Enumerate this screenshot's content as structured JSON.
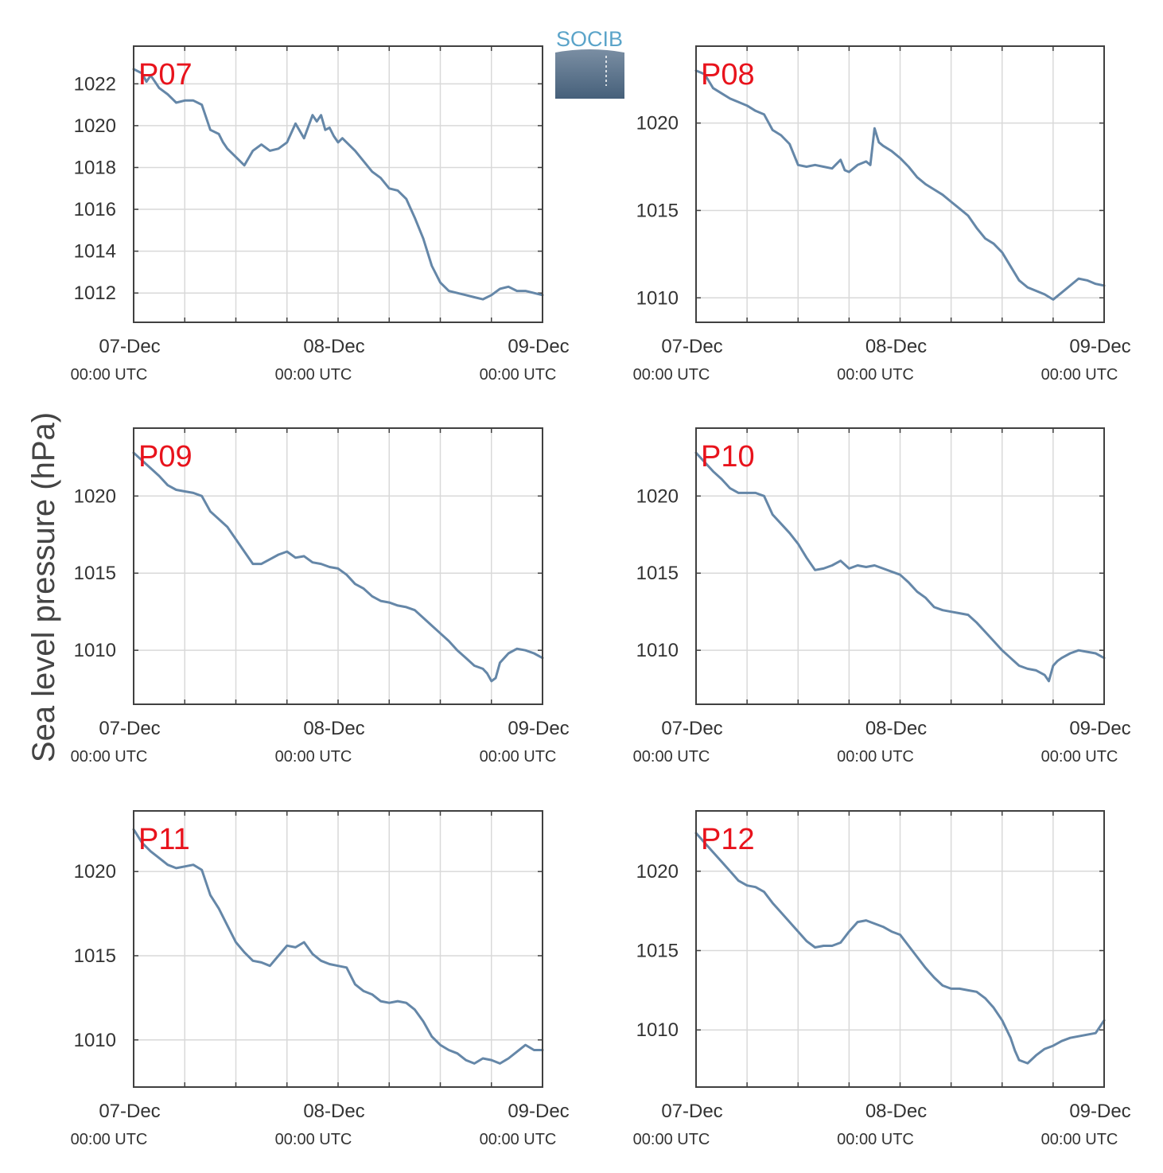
{
  "figure": {
    "ylabel": "Sea level pressure (hPa)",
    "logo_text": "SOCIB",
    "colors": {
      "line": "#6587a8",
      "title": "#e8131c",
      "grid": "#d9d9d9",
      "axis": "#404040",
      "logo_top": "#5ba4c9",
      "logo_bottom": "#46607a"
    }
  },
  "chart_data": [
    {
      "type": "line",
      "title": "P07",
      "xlim": [
        0,
        48
      ],
      "ylim": [
        1010.6,
        1023.8
      ],
      "yticks": [
        1012,
        1014,
        1016,
        1018,
        1020,
        1022
      ],
      "xticks": [
        {
          "x": 0,
          "date": "07-Dec",
          "time": "00:00 UTC"
        },
        {
          "x": 24,
          "date": "08-Dec",
          "time": "00:00 UTC"
        },
        {
          "x": 48,
          "date": "09-Dec",
          "time": "00:00 UTC"
        }
      ],
      "series": [
        {
          "x": [
            0,
            1,
            1.5,
            2,
            2.5,
            3,
            4,
            5,
            6,
            7,
            8,
            9,
            10,
            10.5,
            11,
            12,
            13,
            14,
            15,
            16,
            17,
            18,
            19,
            20,
            21,
            21.5,
            22,
            22.5,
            23,
            23.5,
            24,
            24.5,
            25,
            26,
            27,
            28,
            29,
            30,
            31,
            32,
            33,
            34,
            35,
            36,
            37,
            38,
            39,
            40,
            41,
            42,
            43,
            44,
            45,
            46,
            47,
            48
          ],
          "values": [
            1022.7,
            1022.5,
            1022.1,
            1022.4,
            1022.1,
            1021.8,
            1021.5,
            1021.1,
            1021.2,
            1021.2,
            1021.0,
            1019.8,
            1019.6,
            1019.2,
            1018.9,
            1018.5,
            1018.1,
            1018.8,
            1019.1,
            1018.8,
            1018.9,
            1019.2,
            1020.1,
            1019.4,
            1020.5,
            1020.2,
            1020.5,
            1019.8,
            1019.9,
            1019.5,
            1019.2,
            1019.4,
            1019.2,
            1018.8,
            1018.3,
            1017.8,
            1017.5,
            1017.0,
            1016.9,
            1016.5,
            1015.6,
            1014.6,
            1013.3,
            1012.5,
            1012.1,
            1012.0,
            1011.9,
            1011.8,
            1011.7,
            1011.9,
            1012.2,
            1012.3,
            1012.1,
            1012.1,
            1012.0,
            1011.9
          ]
        }
      ]
    },
    {
      "type": "line",
      "title": "P08",
      "xlim": [
        0,
        48
      ],
      "ylim": [
        1008.6,
        1024.4
      ],
      "yticks": [
        1010,
        1015,
        1020
      ],
      "xticks": [
        {
          "x": 0,
          "date": "07-Dec",
          "time": "00:00 UTC"
        },
        {
          "x": 24,
          "date": "08-Dec",
          "time": "00:00 UTC"
        },
        {
          "x": 48,
          "date": "09-Dec",
          "time": "00:00 UTC"
        }
      ],
      "series": [
        {
          "x": [
            0,
            1,
            2,
            3,
            4,
            5,
            6,
            7,
            8,
            9,
            10,
            11,
            12,
            13,
            14,
            15,
            16,
            17,
            17.5,
            18,
            18.5,
            19,
            20,
            20.5,
            21,
            21.5,
            22,
            23,
            24,
            25,
            26,
            27,
            28,
            29,
            30,
            31,
            32,
            33,
            34,
            35,
            36,
            37,
            38,
            39,
            40,
            41,
            42,
            43,
            44,
            45,
            46,
            47,
            48
          ],
          "values": [
            1023.0,
            1022.8,
            1022.0,
            1021.7,
            1021.4,
            1021.2,
            1021.0,
            1020.7,
            1020.5,
            1019.6,
            1019.3,
            1018.8,
            1017.6,
            1017.5,
            1017.6,
            1017.5,
            1017.4,
            1017.9,
            1017.3,
            1017.2,
            1017.4,
            1017.6,
            1017.8,
            1017.6,
            1019.7,
            1018.9,
            1018.7,
            1018.4,
            1018.0,
            1017.5,
            1016.9,
            1016.5,
            1016.2,
            1015.9,
            1015.5,
            1015.1,
            1014.7,
            1014.0,
            1013.4,
            1013.1,
            1012.6,
            1011.8,
            1011.0,
            1010.6,
            1010.4,
            1010.2,
            1009.9,
            1010.3,
            1010.7,
            1011.1,
            1011.0,
            1010.8,
            1010.7
          ]
        }
      ]
    },
    {
      "type": "line",
      "title": "P09",
      "xlim": [
        0,
        48
      ],
      "ylim": [
        1006.5,
        1024.4
      ],
      "yticks": [
        1010,
        1015,
        1020
      ],
      "xticks": [
        {
          "x": 0,
          "date": "07-Dec",
          "time": "00:00 UTC"
        },
        {
          "x": 24,
          "date": "08-Dec",
          "time": "00:00 UTC"
        },
        {
          "x": 48,
          "date": "09-Dec",
          "time": "00:00 UTC"
        }
      ],
      "series": [
        {
          "x": [
            0,
            1,
            2,
            3,
            4,
            5,
            6,
            7,
            8,
            9,
            10,
            11,
            12,
            13,
            14,
            15,
            16,
            17,
            18,
            19,
            20,
            21,
            22,
            23,
            24,
            25,
            26,
            27,
            28,
            29,
            30,
            31,
            32,
            33,
            34,
            35,
            36,
            37,
            38,
            39,
            40,
            41,
            41.5,
            42,
            42.5,
            43,
            44,
            45,
            46,
            47,
            48
          ],
          "values": [
            1022.8,
            1022.3,
            1021.8,
            1021.3,
            1020.7,
            1020.4,
            1020.3,
            1020.2,
            1020.0,
            1019.0,
            1018.5,
            1018.0,
            1017.2,
            1016.4,
            1015.6,
            1015.6,
            1015.9,
            1016.2,
            1016.4,
            1016.0,
            1016.1,
            1015.7,
            1015.6,
            1015.4,
            1015.3,
            1014.9,
            1014.3,
            1014.0,
            1013.5,
            1013.2,
            1013.1,
            1012.9,
            1012.8,
            1012.6,
            1012.1,
            1011.6,
            1011.1,
            1010.6,
            1010.0,
            1009.5,
            1009.0,
            1008.8,
            1008.5,
            1008.0,
            1008.2,
            1009.2,
            1009.8,
            1010.1,
            1010.0,
            1009.8,
            1009.5
          ]
        }
      ]
    },
    {
      "type": "line",
      "title": "P10",
      "xlim": [
        0,
        48
      ],
      "ylim": [
        1006.5,
        1024.4
      ],
      "yticks": [
        1010,
        1015,
        1020
      ],
      "xticks": [
        {
          "x": 0,
          "date": "07-Dec",
          "time": "00:00 UTC"
        },
        {
          "x": 24,
          "date": "08-Dec",
          "time": "00:00 UTC"
        },
        {
          "x": 48,
          "date": "09-Dec",
          "time": "00:00 UTC"
        }
      ],
      "series": [
        {
          "x": [
            0,
            1,
            2,
            3,
            4,
            5,
            6,
            7,
            8,
            9,
            10,
            11,
            12,
            13,
            14,
            15,
            16,
            17,
            18,
            19,
            20,
            21,
            22,
            23,
            24,
            25,
            26,
            27,
            28,
            29,
            30,
            31,
            32,
            33,
            34,
            35,
            36,
            37,
            38,
            39,
            40,
            41,
            41.5,
            42,
            42.5,
            43,
            44,
            45,
            46,
            47,
            48
          ],
          "values": [
            1022.8,
            1022.2,
            1021.6,
            1021.1,
            1020.5,
            1020.2,
            1020.2,
            1020.2,
            1020.0,
            1018.8,
            1018.2,
            1017.6,
            1016.9,
            1016.0,
            1015.2,
            1015.3,
            1015.5,
            1015.8,
            1015.3,
            1015.5,
            1015.4,
            1015.5,
            1015.3,
            1015.1,
            1014.9,
            1014.4,
            1013.8,
            1013.4,
            1012.8,
            1012.6,
            1012.5,
            1012.4,
            1012.3,
            1011.8,
            1011.2,
            1010.6,
            1010.0,
            1009.5,
            1009.0,
            1008.8,
            1008.7,
            1008.4,
            1008.0,
            1009.0,
            1009.3,
            1009.5,
            1009.8,
            1010.0,
            1009.9,
            1009.8,
            1009.5
          ]
        }
      ]
    },
    {
      "type": "line",
      "title": "P11",
      "xlim": [
        0,
        48
      ],
      "ylim": [
        1007.2,
        1023.6
      ],
      "yticks": [
        1010,
        1015,
        1020
      ],
      "xticks": [
        {
          "x": 0,
          "date": "07-Dec",
          "time": "00:00 UTC"
        },
        {
          "x": 24,
          "date": "08-Dec",
          "time": "00:00 UTC"
        },
        {
          "x": 48,
          "date": "09-Dec",
          "time": "00:00 UTC"
        }
      ],
      "series": [
        {
          "x": [
            0,
            1,
            2,
            3,
            4,
            5,
            6,
            7,
            8,
            9,
            10,
            11,
            12,
            13,
            14,
            15,
            16,
            17,
            18,
            19,
            20,
            21,
            22,
            23,
            24,
            25,
            26,
            27,
            28,
            29,
            30,
            31,
            32,
            33,
            34,
            35,
            36,
            37,
            38,
            39,
            40,
            41,
            42,
            43,
            44,
            45,
            46,
            47,
            48
          ],
          "values": [
            1022.5,
            1021.7,
            1021.2,
            1020.8,
            1020.4,
            1020.2,
            1020.3,
            1020.4,
            1020.1,
            1018.6,
            1017.8,
            1016.8,
            1015.8,
            1015.2,
            1014.7,
            1014.6,
            1014.4,
            1015.0,
            1015.6,
            1015.5,
            1015.8,
            1015.1,
            1014.7,
            1014.5,
            1014.4,
            1014.3,
            1013.3,
            1012.9,
            1012.7,
            1012.3,
            1012.2,
            1012.3,
            1012.2,
            1011.8,
            1011.1,
            1010.2,
            1009.7,
            1009.4,
            1009.2,
            1008.8,
            1008.6,
            1008.9,
            1008.8,
            1008.6,
            1008.9,
            1009.3,
            1009.7,
            1009.4,
            1009.4
          ]
        }
      ]
    },
    {
      "type": "line",
      "title": "P12",
      "xlim": [
        0,
        48
      ],
      "ylim": [
        1006.4,
        1023.8
      ],
      "yticks": [
        1010,
        1015,
        1020
      ],
      "xticks": [
        {
          "x": 0,
          "date": "07-Dec",
          "time": "00:00 UTC"
        },
        {
          "x": 24,
          "date": "08-Dec",
          "time": "00:00 UTC"
        },
        {
          "x": 48,
          "date": "09-Dec",
          "time": "00:00 UTC"
        }
      ],
      "series": [
        {
          "x": [
            0,
            1,
            2,
            3,
            4,
            5,
            6,
            7,
            8,
            9,
            10,
            11,
            12,
            13,
            14,
            15,
            16,
            17,
            18,
            19,
            20,
            21,
            22,
            23,
            24,
            25,
            26,
            27,
            28,
            29,
            30,
            31,
            32,
            33,
            34,
            35,
            36,
            37,
            37.5,
            38,
            39,
            40,
            41,
            42,
            43,
            44,
            45,
            46,
            47,
            47.5,
            48
          ],
          "values": [
            1022.4,
            1021.8,
            1021.2,
            1020.6,
            1020.0,
            1019.4,
            1019.1,
            1019.0,
            1018.7,
            1018.0,
            1017.4,
            1016.8,
            1016.2,
            1015.6,
            1015.2,
            1015.3,
            1015.3,
            1015.5,
            1016.2,
            1016.8,
            1016.9,
            1016.7,
            1016.5,
            1016.2,
            1016.0,
            1015.3,
            1014.6,
            1013.9,
            1013.3,
            1012.8,
            1012.6,
            1012.6,
            1012.5,
            1012.4,
            1012.0,
            1011.4,
            1010.6,
            1009.5,
            1008.7,
            1008.1,
            1007.9,
            1008.4,
            1008.8,
            1009.0,
            1009.3,
            1009.5,
            1009.6,
            1009.7,
            1009.8,
            1010.2,
            1010.6
          ]
        }
      ]
    }
  ]
}
